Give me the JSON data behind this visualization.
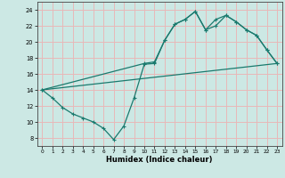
{
  "xlabel": "Humidex (Indice chaleur)",
  "xlim": [
    -0.5,
    23.5
  ],
  "ylim": [
    7,
    25
  ],
  "xticks": [
    0,
    1,
    2,
    3,
    4,
    5,
    6,
    7,
    8,
    9,
    10,
    11,
    12,
    13,
    14,
    15,
    16,
    17,
    18,
    19,
    20,
    21,
    22,
    23
  ],
  "yticks": [
    8,
    10,
    12,
    14,
    16,
    18,
    20,
    22,
    24
  ],
  "bg_color": "#cce8e4",
  "grid_color": "#e8b8b8",
  "line_color": "#1a7a6e",
  "line1_x": [
    0,
    1,
    2,
    3,
    4,
    5,
    6,
    7,
    8,
    9,
    10,
    11,
    12,
    13,
    14,
    15,
    16,
    17,
    18,
    19,
    20,
    21,
    22,
    23
  ],
  "line1_y": [
    14.0,
    13.0,
    11.8,
    11.0,
    10.5,
    10.0,
    9.2,
    7.8,
    9.5,
    13.0,
    17.2,
    17.3,
    20.2,
    22.2,
    22.8,
    23.8,
    21.5,
    22.0,
    23.3,
    22.5,
    21.5,
    20.8,
    19.0,
    17.3
  ],
  "line2_x": [
    0,
    10,
    11,
    12,
    13,
    14,
    15,
    16,
    17,
    18,
    19,
    20,
    21,
    22,
    23
  ],
  "line2_y": [
    14.0,
    17.3,
    17.5,
    20.2,
    22.2,
    22.8,
    23.8,
    21.5,
    22.8,
    23.3,
    22.5,
    21.5,
    20.8,
    19.0,
    17.3
  ],
  "line3_x": [
    0,
    23
  ],
  "line3_y": [
    14.0,
    17.3
  ]
}
